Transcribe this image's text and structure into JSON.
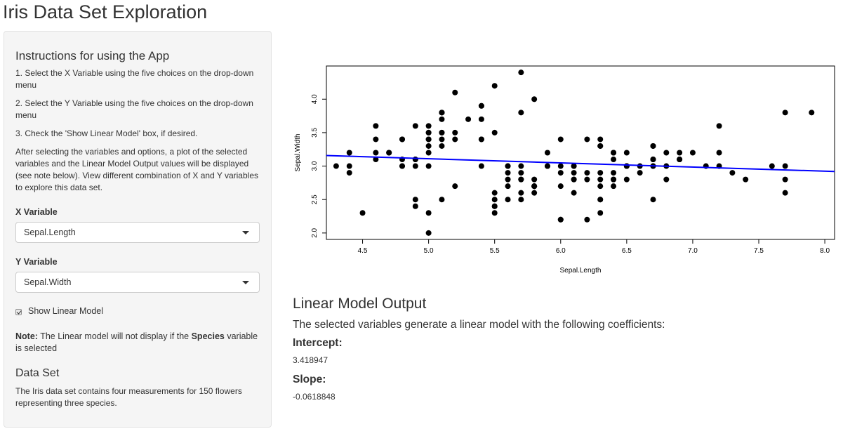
{
  "app": {
    "title": "Iris Data Set Exploration"
  },
  "sidebar": {
    "instructions_title": "Instructions for using the App",
    "steps": [
      "1. Select the X Variable using the five choices on the drop-down menu",
      "2. Select the Y Variable using the five choices on the drop-down menu",
      "3. Check the 'Show Linear Model' box, if desired."
    ],
    "paragraph": "After selecting the variables and options, a plot of the selected variables and the Linear Model Output values will be displayed (see note below). View different combination of X and Y variables to explore this data set.",
    "x_label": "X Variable",
    "x_selected": "Sepal.Length",
    "y_label": "Y Variable",
    "y_selected": "Sepal.Width",
    "checkbox_label": "Show Linear Model",
    "checkbox_checked": true,
    "note_prefix": "Note:",
    "note_text_1": " The Linear model will not display if the ",
    "note_bold": "Species",
    "note_text_2": " variable is selected",
    "dataset_title": "Data Set",
    "dataset_text": "The Iris data set contains four measurements for 150 flowers representing three species."
  },
  "model": {
    "title": "Linear Model Output",
    "description": "The selected variables generate a linear model with the following coefficients:",
    "intercept_label": "Intercept:",
    "intercept_value": "3.418947",
    "slope_label": "Slope:",
    "slope_value": "-0.0618848"
  },
  "chart_data": {
    "type": "scatter",
    "xlabel": "Sepal.Length",
    "ylabel": "Sepal.Width",
    "xlim": [
      4.3,
      8.0
    ],
    "ylim": [
      2.0,
      4.4
    ],
    "xticks": [
      "4.5",
      "5.0",
      "5.5",
      "6.0",
      "6.5",
      "7.0",
      "7.5",
      "8.0"
    ],
    "yticks": [
      "2.0",
      "2.5",
      "3.0",
      "3.5",
      "4.0"
    ],
    "point_color": "#000000",
    "line_color": "#0000ff",
    "fit_line": {
      "intercept": 3.418947,
      "slope": -0.0618848
    },
    "points": [
      [
        5.1,
        3.5
      ],
      [
        4.9,
        3.0
      ],
      [
        4.7,
        3.2
      ],
      [
        4.6,
        3.1
      ],
      [
        5.0,
        3.6
      ],
      [
        5.4,
        3.9
      ],
      [
        4.6,
        3.4
      ],
      [
        5.0,
        3.4
      ],
      [
        4.4,
        2.9
      ],
      [
        4.9,
        3.1
      ],
      [
        5.4,
        3.7
      ],
      [
        4.8,
        3.4
      ],
      [
        4.8,
        3.0
      ],
      [
        4.3,
        3.0
      ],
      [
        5.8,
        4.0
      ],
      [
        5.7,
        4.4
      ],
      [
        5.4,
        3.9
      ],
      [
        5.1,
        3.5
      ],
      [
        5.7,
        3.8
      ],
      [
        5.1,
        3.8
      ],
      [
        5.4,
        3.4
      ],
      [
        5.1,
        3.7
      ],
      [
        4.6,
        3.6
      ],
      [
        5.1,
        3.3
      ],
      [
        4.8,
        3.4
      ],
      [
        5.0,
        3.0
      ],
      [
        5.0,
        3.4
      ],
      [
        5.2,
        3.5
      ],
      [
        5.2,
        3.4
      ],
      [
        4.7,
        3.2
      ],
      [
        4.8,
        3.1
      ],
      [
        5.4,
        3.4
      ],
      [
        5.2,
        4.1
      ],
      [
        5.5,
        4.2
      ],
      [
        4.9,
        3.1
      ],
      [
        5.0,
        3.2
      ],
      [
        5.5,
        3.5
      ],
      [
        4.9,
        3.6
      ],
      [
        4.4,
        3.0
      ],
      [
        5.1,
        3.4
      ],
      [
        5.0,
        3.5
      ],
      [
        4.5,
        2.3
      ],
      [
        4.4,
        3.2
      ],
      [
        5.0,
        3.5
      ],
      [
        5.1,
        3.8
      ],
      [
        4.8,
        3.0
      ],
      [
        5.1,
        3.8
      ],
      [
        4.6,
        3.2
      ],
      [
        5.3,
        3.7
      ],
      [
        5.0,
        3.3
      ],
      [
        7.0,
        3.2
      ],
      [
        6.4,
        3.2
      ],
      [
        6.9,
        3.1
      ],
      [
        5.5,
        2.3
      ],
      [
        6.5,
        2.8
      ],
      [
        5.7,
        2.8
      ],
      [
        6.3,
        3.3
      ],
      [
        4.9,
        2.4
      ],
      [
        6.6,
        2.9
      ],
      [
        5.2,
        2.7
      ],
      [
        5.0,
        2.0
      ],
      [
        5.9,
        3.0
      ],
      [
        6.0,
        2.2
      ],
      [
        6.1,
        2.9
      ],
      [
        5.6,
        2.9
      ],
      [
        6.7,
        3.1
      ],
      [
        5.6,
        3.0
      ],
      [
        5.8,
        2.7
      ],
      [
        6.2,
        2.2
      ],
      [
        5.6,
        2.5
      ],
      [
        5.9,
        3.2
      ],
      [
        6.1,
        2.8
      ],
      [
        6.3,
        2.5
      ],
      [
        6.1,
        2.8
      ],
      [
        6.4,
        2.9
      ],
      [
        6.6,
        3.0
      ],
      [
        6.8,
        2.8
      ],
      [
        6.7,
        3.0
      ],
      [
        6.0,
        2.9
      ],
      [
        5.7,
        2.6
      ],
      [
        5.5,
        2.4
      ],
      [
        5.5,
        2.4
      ],
      [
        5.8,
        2.7
      ],
      [
        6.0,
        2.7
      ],
      [
        5.4,
        3.0
      ],
      [
        6.0,
        3.4
      ],
      [
        6.7,
        3.1
      ],
      [
        6.3,
        2.3
      ],
      [
        5.6,
        3.0
      ],
      [
        5.5,
        2.5
      ],
      [
        5.5,
        2.6
      ],
      [
        6.1,
        3.0
      ],
      [
        5.8,
        2.6
      ],
      [
        5.0,
        2.3
      ],
      [
        5.6,
        2.7
      ],
      [
        5.7,
        3.0
      ],
      [
        5.7,
        2.9
      ],
      [
        6.2,
        2.9
      ],
      [
        5.1,
        2.5
      ],
      [
        5.7,
        2.8
      ],
      [
        6.3,
        3.3
      ],
      [
        5.8,
        2.7
      ],
      [
        7.1,
        3.0
      ],
      [
        6.3,
        2.9
      ],
      [
        6.5,
        3.0
      ],
      [
        7.6,
        3.0
      ],
      [
        4.9,
        2.5
      ],
      [
        7.3,
        2.9
      ],
      [
        6.7,
        2.5
      ],
      [
        7.2,
        3.6
      ],
      [
        6.5,
        3.2
      ],
      [
        6.4,
        2.7
      ],
      [
        6.8,
        3.0
      ],
      [
        5.7,
        2.5
      ],
      [
        5.8,
        2.8
      ],
      [
        6.4,
        3.2
      ],
      [
        6.5,
        3.0
      ],
      [
        7.7,
        3.8
      ],
      [
        7.7,
        2.6
      ],
      [
        6.0,
        2.2
      ],
      [
        6.9,
        3.2
      ],
      [
        5.6,
        2.8
      ],
      [
        7.7,
        2.8
      ],
      [
        6.3,
        2.7
      ],
      [
        6.7,
        3.3
      ],
      [
        7.2,
        3.2
      ],
      [
        6.2,
        2.8
      ],
      [
        6.1,
        3.0
      ],
      [
        6.4,
        2.8
      ],
      [
        7.2,
        3.0
      ],
      [
        7.4,
        2.8
      ],
      [
        7.9,
        3.8
      ],
      [
        6.4,
        2.8
      ],
      [
        6.3,
        2.8
      ],
      [
        6.1,
        2.6
      ],
      [
        7.7,
        3.0
      ],
      [
        6.3,
        3.4
      ],
      [
        6.4,
        3.1
      ],
      [
        6.0,
        3.0
      ],
      [
        6.9,
        3.1
      ],
      [
        6.7,
        3.1
      ],
      [
        6.9,
        3.1
      ],
      [
        5.8,
        2.7
      ],
      [
        6.8,
        3.2
      ],
      [
        6.7,
        3.3
      ],
      [
        6.7,
        3.0
      ],
      [
        6.3,
        2.5
      ],
      [
        6.5,
        3.0
      ],
      [
        6.2,
        3.4
      ],
      [
        5.9,
        3.0
      ]
    ]
  }
}
